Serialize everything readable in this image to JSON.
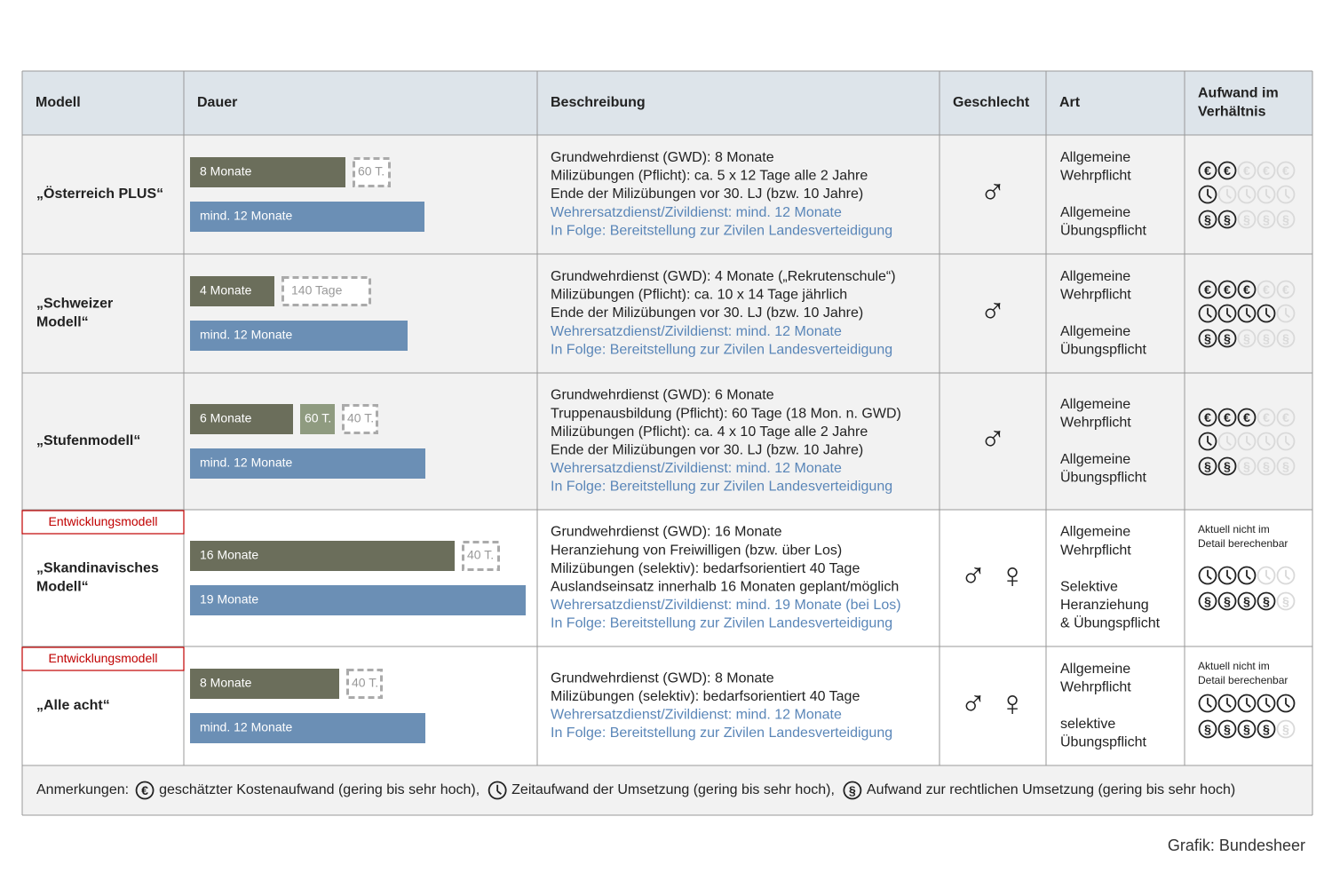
{
  "header": {
    "columns": [
      [
        "Modell"
      ],
      [
        "Dauer"
      ],
      [
        "Beschreibung"
      ],
      [
        "Geschlecht"
      ],
      [
        "Art"
      ],
      [
        "Aufwand im",
        "Verhältnis"
      ]
    ]
  },
  "rating_max": 5,
  "symbols": {
    "cost": "€",
    "legal": "§"
  },
  "rows": [
    {
      "model": [
        "„Österreich PLUS“"
      ],
      "military": [
        {
          "label": "8 Monate",
          "style": "solid"
        },
        {
          "label": "60 T.",
          "style": "dashed"
        }
      ],
      "civil": "mind. 12 Monate",
      "description": [
        "Grundwehrdienst (GWD): 8 Monate",
        "Milizübungen (Pflicht): ca. 5 x 12 Tage alle 2 Jahre",
        "Ende der Milizübungen vor 30. LJ (bzw. 10 Jahre)"
      ],
      "alternative": [
        "Wehrersatzdienst/Zivildienst: mind. 12 Monate",
        "In Folge: Bereitstellung zur Zivilen Landesverteidigung"
      ],
      "gender": [
        "♂"
      ],
      "art": [
        [
          "Allgemeine",
          "Wehrpflicht"
        ],
        [
          "Allgemeine",
          "Übungspflicht"
        ]
      ],
      "ratings": {
        "cost": 2,
        "time": 1,
        "legal": 2
      }
    },
    {
      "model": [
        "„Schweizer",
        "Modell“"
      ],
      "military": [
        {
          "label": "4 Monate",
          "style": "solid"
        },
        {
          "label": "140 Tage",
          "style": "dashed"
        }
      ],
      "civil": "mind. 12 Monate",
      "description": [
        "Grundwehrdienst (GWD): 4 Monate („Rekrutenschule“)",
        "Milizübungen (Pflicht): ca. 10 x 14 Tage jährlich",
        "Ende der Milizübungen vor 30. LJ (bzw. 10 Jahre)"
      ],
      "alternative": [
        "Wehrersatzdienst/Zivildienst: mind. 12 Monate",
        "In Folge: Bereitstellung zur Zivilen Landesverteidigung"
      ],
      "gender": [
        "♂"
      ],
      "art": [
        [
          "Allgemeine",
          "Wehrpflicht"
        ],
        [
          "Allgemeine",
          "Übungspflicht"
        ]
      ],
      "ratings": {
        "cost": 3,
        "time": 4,
        "legal": 2
      }
    },
    {
      "model": [
        "„Stufenmodell“"
      ],
      "military": [
        {
          "label": "6 Monate",
          "style": "solid"
        },
        {
          "label": "60 T.",
          "style": "pale"
        },
        {
          "label": "40 T.",
          "style": "dashed"
        }
      ],
      "civil": "mind. 12 Monate",
      "description": [
        "Grundwehrdienst (GWD): 6 Monate",
        "Truppenausbildung (Pflicht): 60 Tage (18 Mon. n. GWD)",
        "Milizübungen (Pflicht): ca. 4 x 10 Tage alle 2 Jahre",
        "Ende der Milizübungen vor 30. LJ (bzw. 10 Jahre)"
      ],
      "alternative": [
        "Wehrersatzdienst/Zivildienst: mind. 12 Monate",
        "In Folge: Bereitstellung zur Zivilen Landesverteidigung"
      ],
      "gender": [
        "♂"
      ],
      "art": [
        [
          "Allgemeine",
          "Wehrpflicht"
        ],
        [
          "Allgemeine",
          "Übungspflicht"
        ]
      ],
      "ratings": {
        "cost": 3,
        "time": 1,
        "legal": 2
      }
    },
    {
      "tag": "Entwicklungsmodell",
      "model": [
        "„Skandinavisches",
        "Modell“"
      ],
      "military": [
        {
          "label": "16 Monate",
          "style": "solid"
        },
        {
          "label": "40 T.",
          "style": "dashed"
        }
      ],
      "civil": "19 Monate",
      "description": [
        "Grundwehrdienst (GWD): 16 Monate",
        "Heranziehung von Freiwilligen (bzw. über Los)",
        "Milizübungen (selektiv): bedarfsorientiert 40 Tage",
        "Auslandseinsatz innerhalb 16 Monaten geplant/möglich"
      ],
      "alternative": [
        "Wehrersatzdienst/Zivildienst: mind. 19 Monate (bei Los)",
        "In Folge: Bereitstellung zur Zivilen Landesverteidigung"
      ],
      "gender": [
        "♂",
        "♀"
      ],
      "art": [
        [
          "Allgemeine",
          "Wehrpflicht"
        ],
        [
          "Selektive",
          "Heranziehung",
          "& Übungspflicht"
        ]
      ],
      "note": [
        "Aktuell nicht im",
        "Detail berechenbar"
      ],
      "ratings": {
        "time": 3,
        "legal": 4
      }
    },
    {
      "tag": "Entwicklungsmodell",
      "model": [
        "„Alle acht“"
      ],
      "military": [
        {
          "label": "8 Monate",
          "style": "solid"
        },
        {
          "label": "40 T.",
          "style": "dashed"
        }
      ],
      "civil": "mind. 12 Monate",
      "description": [
        "Grundwehrdienst (GWD): 8 Monate",
        "Milizübungen (selektiv): bedarfsorientiert 40 Tage"
      ],
      "alternative": [
        "Wehrersatzdienst/Zivildienst: mind. 12 Monate",
        "In Folge: Bereitstellung zur Zivilen Landesverteidigung"
      ],
      "gender": [
        "♂",
        "♀"
      ],
      "art": [
        [
          "Allgemeine",
          "Wehrpflicht"
        ],
        [
          "selektive",
          "Übungspflicht"
        ]
      ],
      "note": [
        "Aktuell nicht im",
        "Detail berechenbar"
      ],
      "ratings": {
        "time": 5,
        "legal": 4
      }
    }
  ],
  "legend": {
    "prefix": "Anmerkungen:",
    "items": [
      {
        "kind": "cost",
        "text": "geschätzter Kostenaufwand (gering bis sehr hoch),"
      },
      {
        "kind": "time",
        "text": "Zeitaufwand der Umsetzung (gering bis sehr hoch),"
      },
      {
        "kind": "legal",
        "text": "Aufwand zur rechtlichen Umsetzung (gering bis sehr hoch)"
      }
    ]
  },
  "source": "Grafik: Bundesheer"
}
